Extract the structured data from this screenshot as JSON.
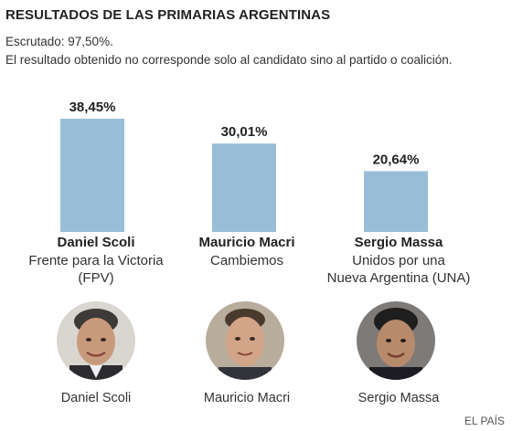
{
  "header": {
    "title": "RESULTADOS DE LAS PRIMARIAS ARGENTINAS",
    "scrutiny": "Escrutado: 97,50%.",
    "note": "El resultado obtenido no corresponde solo al candidato sino al partido o coalición."
  },
  "chart_data": {
    "type": "bar",
    "categories": [
      "Daniel Scoli",
      "Mauricio Macri",
      "Sergio Massa"
    ],
    "values": [
      38.45,
      30.01,
      20.64
    ],
    "value_labels": [
      "38,45%",
      "30,01%",
      "20,64%"
    ],
    "bar_color": "#98bdd6",
    "title": "",
    "xlabel": "",
    "ylabel": ""
  },
  "candidates": [
    {
      "name": "Daniel Scoli",
      "party_lines": [
        "Frente para la Victoria",
        "(FPV)"
      ],
      "caption": "Daniel Scoli"
    },
    {
      "name": "Mauricio Macri",
      "party_lines": [
        "Cambiemos"
      ],
      "caption": "Mauricio Macri"
    },
    {
      "name": "Sergio Massa",
      "party_lines": [
        "Unidos por una",
        "Nueva Argentina (UNA)"
      ],
      "caption": "Sergio Massa"
    }
  ],
  "footer": {
    "source": "EL PAÍS"
  }
}
